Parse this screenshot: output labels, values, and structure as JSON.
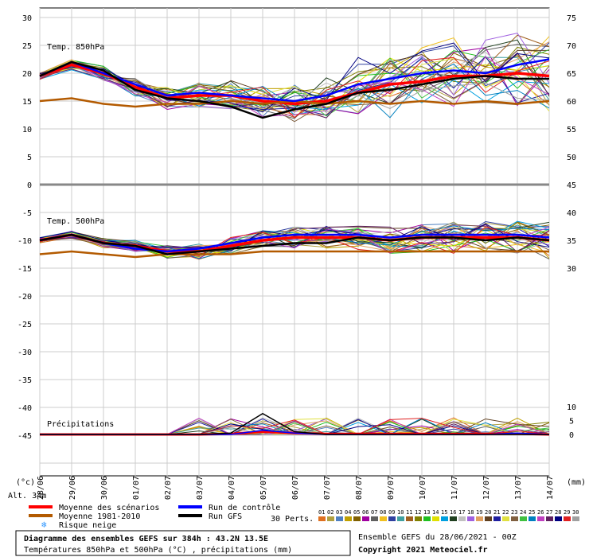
{
  "chart_data": {
    "type": "line",
    "panels": {
      "t850": {
        "label": "Temp. 850hPa",
        "ylim": [
          0,
          30
        ],
        "left_ticks": [
          0,
          5,
          10,
          15,
          20,
          25,
          30
        ],
        "right_ticks": [
          45,
          50,
          55,
          60,
          65,
          70,
          75
        ]
      },
      "t500": {
        "label": "Temp. 500hPa",
        "ylim": [
          -20,
          -5
        ],
        "left_ticks": [
          -5,
          -10,
          -15,
          -20
        ],
        "right_ticks": [
          40,
          35,
          30
        ]
      },
      "precip": {
        "label": "Précipitations",
        "left_ticks": [
          -25,
          -30,
          -35,
          -40,
          -45
        ],
        "right_ticks": [
          0,
          5,
          10
        ]
      }
    },
    "x_dates": [
      "28/06",
      "29/06",
      "30/06",
      "01/07",
      "02/07",
      "03/07",
      "04/07",
      "05/07",
      "06/07",
      "07/07",
      "08/07",
      "09/07",
      "10/07",
      "11/07",
      "12/07",
      "13/07",
      "14/07"
    ],
    "unit_left": "(°c)",
    "unit_right": "(mm)",
    "series": [
      {
        "name": "Moyenne des scénarios",
        "color": "#ff0000",
        "t850": [
          19.5,
          21.5,
          20.0,
          17.5,
          15.5,
          16.0,
          16.0,
          15.0,
          14.5,
          15.0,
          16.5,
          18.0,
          18.5,
          19.5,
          19.5,
          20.0,
          19.5
        ],
        "t500": [
          -10.0,
          -9.0,
          -10.5,
          -11.0,
          -12.0,
          -12.0,
          -11.0,
          -10.0,
          -9.5,
          -9.5,
          -9.5,
          -10.0,
          -9.5,
          -9.5,
          -9.5,
          -9.5,
          -10.0
        ],
        "precip": [
          0,
          0,
          0,
          0,
          0,
          0,
          0.2,
          1.0,
          0.5,
          0.2,
          0.2,
          0.2,
          0.2,
          0.2,
          0.2,
          0.3,
          0
        ]
      },
      {
        "name": "Moyenne 1981-2010",
        "color": "#b35a00",
        "t850": [
          15.0,
          15.5,
          14.5,
          14.0,
          14.5,
          14.5,
          15.0,
          14.5,
          15.0,
          14.5,
          15.0,
          14.5,
          15.0,
          14.5,
          15.0,
          14.5,
          15.0
        ],
        "t500": [
          -12.5,
          -12.0,
          -12.5,
          -13.0,
          -12.5,
          -12.5,
          -12.5,
          -12.0,
          -12.0,
          -12.0,
          -12.0,
          -12.0,
          -12.0,
          -12.0,
          -12.0,
          -12.0,
          -12.0
        ]
      },
      {
        "name": "Run de contrôle",
        "color": "#0000ff",
        "t850": [
          19.5,
          22.0,
          20.0,
          18.0,
          16.0,
          16.5,
          16.0,
          15.5,
          15.0,
          16.0,
          18.0,
          19.0,
          20.0,
          20.5,
          20.0,
          21.5,
          22.5
        ],
        "t500": [
          -10.0,
          -9.0,
          -10.5,
          -11.5,
          -12.0,
          -11.5,
          -10.5,
          -9.5,
          -9.0,
          -9.0,
          -9.0,
          -9.5,
          -9.0,
          -9.0,
          -9.0,
          -9.0,
          -9.5
        ],
        "precip": [
          0,
          0,
          0,
          0,
          0,
          0,
          0,
          1.5,
          0.5,
          0,
          0,
          0,
          0,
          0,
          0,
          0.5,
          0
        ]
      },
      {
        "name": "Run GFS",
        "color": "#000000",
        "t850": [
          19.5,
          22.0,
          20.5,
          17.0,
          15.5,
          15.0,
          14.0,
          12.0,
          13.5,
          14.5,
          16.5,
          17.0,
          18.0,
          19.0,
          19.5,
          19.0,
          19.0
        ],
        "t500": [
          -10.0,
          -9.0,
          -10.5,
          -11.0,
          -12.5,
          -12.0,
          -11.5,
          -11.0,
          -10.5,
          -10.5,
          -9.5,
          -10.0,
          -9.5,
          -9.5,
          -10.0,
          -9.5,
          -10.0
        ],
        "precip": [
          0,
          0,
          0,
          0,
          0,
          0,
          0.5,
          7.5,
          1.0,
          0,
          0,
          0,
          0,
          0,
          0,
          0,
          0
        ]
      }
    ],
    "perturbation_count_label": "30 Perts.",
    "perturbations": [
      {
        "id": "01",
        "color": "#e07020"
      },
      {
        "id": "02",
        "color": "#b0a040"
      },
      {
        "id": "03",
        "color": "#5080c0"
      },
      {
        "id": "04",
        "color": "#c0a000"
      },
      {
        "id": "05",
        "color": "#806000"
      },
      {
        "id": "06",
        "color": "#a000a0"
      },
      {
        "id": "07",
        "color": "#606060"
      },
      {
        "id": "08",
        "color": "#f0c020"
      },
      {
        "id": "09",
        "color": "#3040a0"
      },
      {
        "id": "10",
        "color": "#40a0a0"
      },
      {
        "id": "11",
        "color": "#a06020"
      },
      {
        "id": "12",
        "color": "#808000"
      },
      {
        "id": "13",
        "color": "#20c020"
      },
      {
        "id": "14",
        "color": "#e0e000"
      },
      {
        "id": "15",
        "color": "#00a0e0"
      },
      {
        "id": "16",
        "color": "#204020"
      },
      {
        "id": "17",
        "color": "#c0c0c0"
      },
      {
        "id": "18",
        "color": "#a060e0"
      },
      {
        "id": "19",
        "color": "#e0a060"
      },
      {
        "id": "20",
        "color": "#604020"
      },
      {
        "id": "21",
        "color": "#2020a0"
      },
      {
        "id": "22",
        "color": "#e0e040"
      },
      {
        "id": "23",
        "color": "#806040"
      },
      {
        "id": "24",
        "color": "#40c040"
      },
      {
        "id": "25",
        "color": "#0080c0"
      },
      {
        "id": "26",
        "color": "#c040c0"
      },
      {
        "id": "27",
        "color": "#602060"
      },
      {
        "id": "28",
        "color": "#000080"
      },
      {
        "id": "29",
        "color": "#e02020"
      },
      {
        "id": "30",
        "color": "#a0a0a0"
      }
    ],
    "snow_risk_label": "Risque neige",
    "alt_label": "Alt. 34m"
  },
  "footer": {
    "title": "Diagramme des ensembles GEFS sur 384h : 43.2N 13.5E",
    "subtitle": "Températures 850hPa et 500hPa (°C) , précipitations (mm)",
    "run_info": "Ensemble GEFS du 28/06/2021 - 00Z",
    "copyright": "Copyright 2021 Meteociel.fr"
  }
}
